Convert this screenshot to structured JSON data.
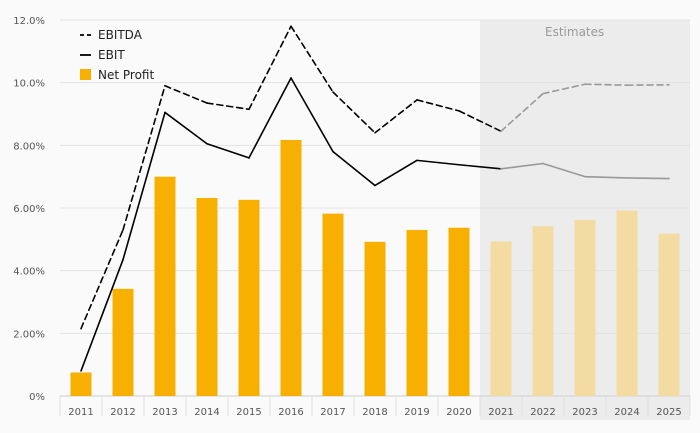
{
  "chart_data": {
    "type": "bar",
    "categories": [
      "2011",
      "2012",
      "2013",
      "2014",
      "2015",
      "2016",
      "2017",
      "2018",
      "2019",
      "2020",
      "2021",
      "2022",
      "2023",
      "2024",
      "2025"
    ],
    "series": [
      {
        "name": "EBITDA",
        "type": "line",
        "style": "dashed",
        "values": [
          2.15,
          5.3,
          9.9,
          9.35,
          9.15,
          11.8,
          9.7,
          8.4,
          9.45,
          9.1,
          8.45,
          9.65,
          9.95,
          9.92,
          9.93
        ]
      },
      {
        "name": "EBIT",
        "type": "line",
        "style": "solid",
        "values": [
          0.8,
          4.35,
          9.05,
          8.05,
          7.6,
          10.15,
          7.8,
          6.72,
          7.52,
          7.38,
          7.25,
          7.42,
          7.0,
          6.96,
          6.94
        ]
      },
      {
        "name": "Net Profit",
        "type": "bar",
        "values": [
          0.75,
          3.42,
          7.0,
          6.32,
          6.26,
          8.17,
          5.82,
          4.92,
          5.3,
          5.37,
          4.93,
          5.42,
          5.62,
          5.92,
          5.18
        ]
      }
    ],
    "y_ticks": [
      "0%",
      "2.00%",
      "4.00%",
      "6.00%",
      "8.00%",
      "10.0%",
      "12.0%"
    ],
    "ylim": [
      0,
      12
    ],
    "estimates_label": "Estimates",
    "estimates_from": "2021",
    "legend_position": "top-left",
    "grid": true,
    "colors": {
      "bar": "#f7b000",
      "bar_estimate": "#f3dba2",
      "line": "#000000",
      "line_estimate": "#999999",
      "estimate_band": "#ececec",
      "grid": "#e2e2e2"
    }
  }
}
